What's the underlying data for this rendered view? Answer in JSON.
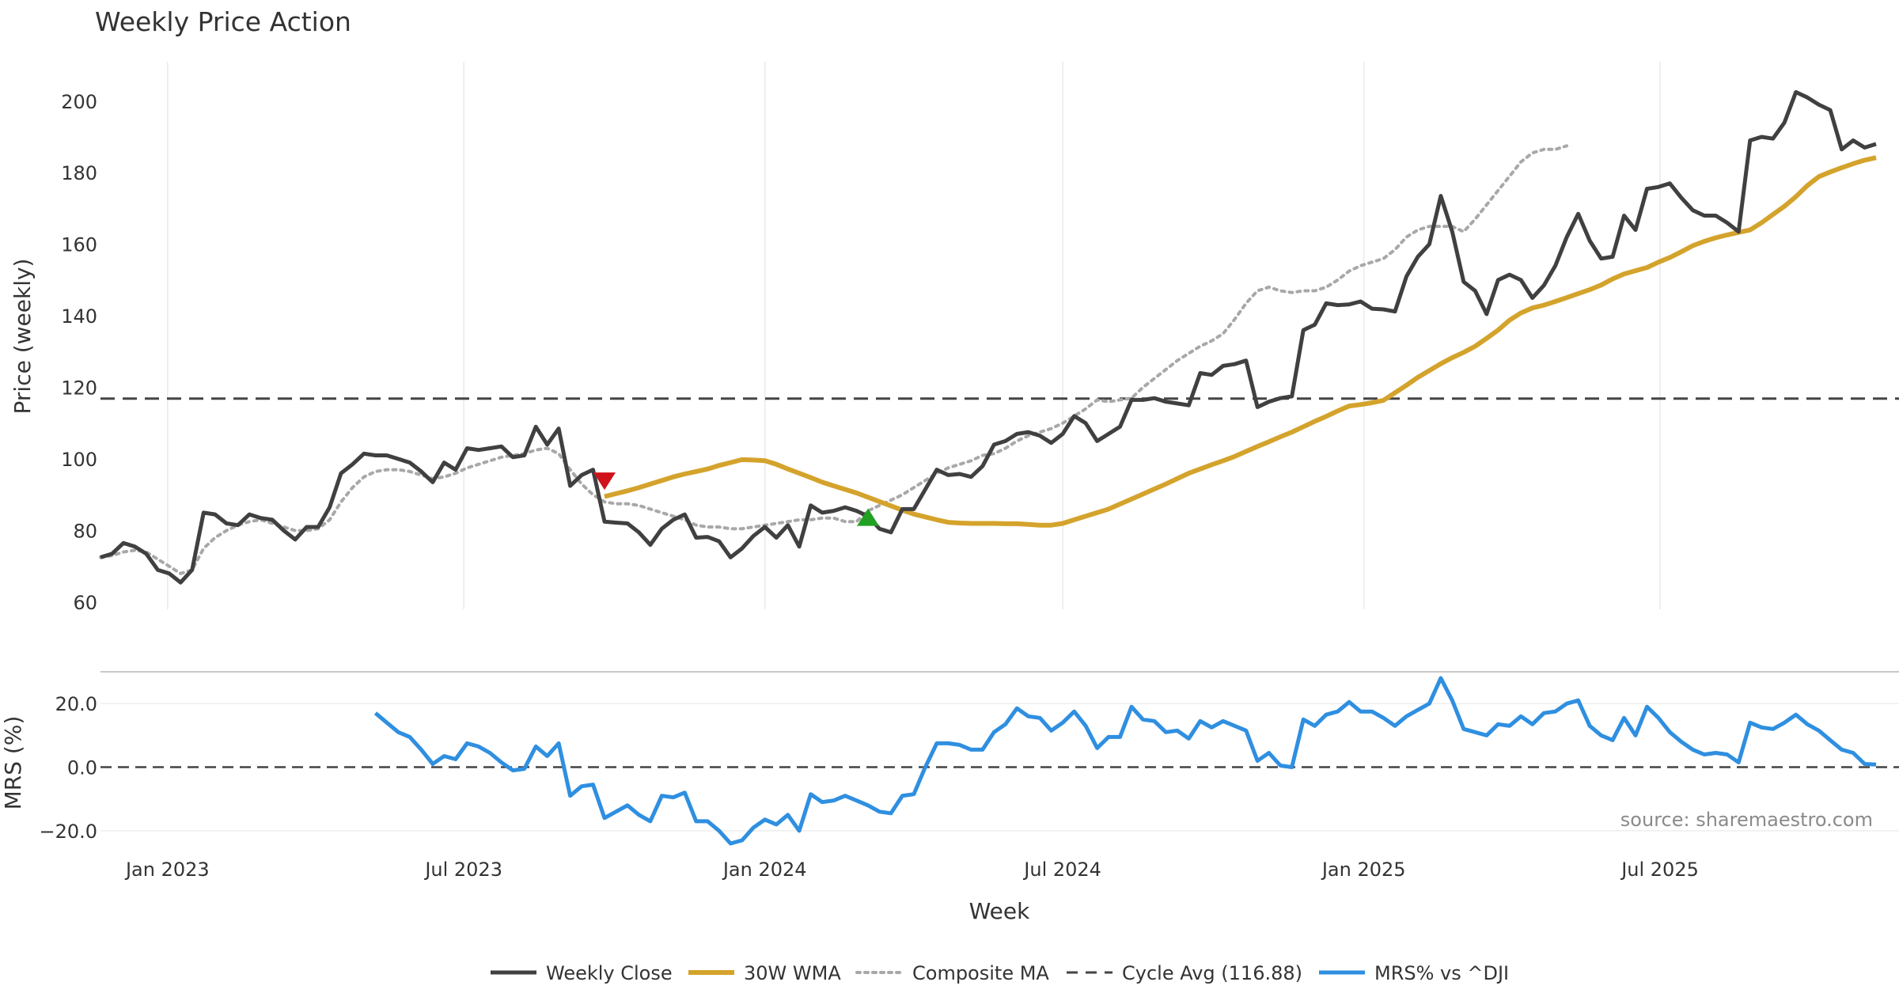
{
  "chart_data": {
    "type": "line",
    "title": "Weekly Price Action",
    "xlabel": "Week",
    "x_ticks": [
      "Jan 2023",
      "Jul 2023",
      "Jan 2024",
      "Jul 2024",
      "Jan 2025",
      "Jul 2025"
    ],
    "price_panel": {
      "ylabel": "Price (weekly)",
      "ylim": [
        58,
        211
      ],
      "y_ticks": [
        "60",
        "80",
        "100",
        "120",
        "140",
        "160",
        "180",
        "200"
      ],
      "grid": true
    },
    "mrs_panel": {
      "ylabel": "MRS (%)",
      "ylim": [
        -25,
        30
      ],
      "y_ticks": [
        "20.0",
        "0.0",
        "−20.0"
      ],
      "grid": true
    },
    "source": "source: sharemaestro.com",
    "colors": {
      "close": "#404040",
      "wma": "#d4a32c",
      "composite": "#a8a8a8",
      "cycle": "#444444",
      "mrs": "#2f8fe0",
      "sell_marker": "#d0121b",
      "buy_marker": "#22a022",
      "grid": "#e8eaf2"
    },
    "legend": [
      {
        "label": "Weekly Close",
        "style": "solid",
        "color": "#404040"
      },
      {
        "label": "30W WMA",
        "style": "solid-thick",
        "color": "#d4a32c"
      },
      {
        "label": "Composite MA",
        "style": "dotted",
        "color": "#a8a8a8"
      },
      {
        "label": "Cycle Avg (116.88)",
        "style": "dashed",
        "color": "#444444"
      },
      {
        "label": "MRS% vs ^DJI",
        "style": "solid",
        "color": "#2f8fe0"
      }
    ],
    "cycle_avg": 116.88,
    "weeks_start_date": "2022-11-21",
    "weekly_close": [
      72.5,
      73.5,
      76.5,
      75.5,
      73.5,
      69,
      68,
      65.5,
      69,
      85,
      84.5,
      82,
      81.5,
      84.5,
      83.5,
      83,
      80,
      77.5,
      81,
      81,
      86.5,
      96,
      98.5,
      101.5,
      101,
      101,
      100,
      99,
      96.5,
      93.5,
      99,
      97,
      103,
      102.5,
      103,
      103.5,
      100.5,
      101,
      109,
      104,
      108.5,
      92.5,
      95.5,
      97,
      82.5,
      82.2,
      82,
      79.5,
      76,
      80.5,
      83,
      84.5,
      78,
      78.2,
      77,
      72.5,
      75,
      78.5,
      81,
      78,
      81.5,
      75.5,
      87,
      85,
      85.5,
      86.5,
      85.5,
      84,
      80.5,
      79.5,
      86,
      86,
      91.5,
      97,
      95.5,
      95.8,
      95,
      98,
      104,
      105,
      107,
      107.5,
      106.5,
      104.5,
      107,
      112,
      110,
      105,
      107,
      109,
      116.5,
      116.5,
      117,
      116,
      115.5,
      115,
      124,
      123.5,
      126,
      126.5,
      127.5,
      114.5,
      116,
      117,
      117.5,
      136,
      137.5,
      143.5,
      143,
      143.2,
      144,
      142,
      141.8,
      141.2,
      151,
      156.5,
      160,
      173.5,
      163.5,
      149.5,
      147,
      140.5,
      150,
      151.5,
      150,
      145,
      148.5,
      154,
      162,
      168.5,
      161,
      156,
      156.5,
      168,
      164,
      175.5,
      176,
      177,
      173,
      169.5,
      168,
      168,
      166,
      163.5,
      189,
      190,
      189.5,
      194,
      202.5,
      201,
      199,
      197.5,
      186.5,
      189,
      187,
      188
    ],
    "wma_30": [
      89.5,
      90.3,
      91.1,
      92,
      93,
      94,
      95,
      95.8,
      96.5,
      97.2,
      98.2,
      99,
      99.8,
      99.7,
      99.5,
      98.5,
      97.2,
      96,
      94.8,
      93.5,
      92.5,
      91.5,
      90.5,
      89.3,
      88.1,
      86.9,
      85.7,
      84.6,
      83.8,
      83,
      82.3,
      82.1,
      82,
      82,
      82,
      81.9,
      81.9,
      81.7,
      81.5,
      81.5,
      82,
      83,
      84,
      85,
      86,
      87.4,
      88.8,
      90.2,
      91.6,
      93,
      94.5,
      96,
      97.2,
      98.4,
      99.5,
      100.7,
      102.1,
      103.5,
      104.8,
      106.2,
      107.5,
      109,
      110.5,
      111.9,
      113.4,
      114.8,
      115.2,
      115.7,
      116.4,
      118.5,
      120.6,
      122.8,
      124.7,
      126.6,
      128.3,
      129.8,
      131.5,
      133.7,
      136,
      138.8,
      140.8,
      142.2,
      143,
      144,
      145.1,
      146.2,
      147.3,
      148.6,
      150.3,
      151.7,
      152.6,
      153.5,
      155,
      156.3,
      157.9,
      159.6,
      160.8,
      161.8,
      162.6,
      163.3,
      164,
      166,
      168.3,
      170.6,
      173.3,
      176.4,
      178.9,
      180.2,
      181.4,
      182.5,
      183.5,
      184.2
    ],
    "composite_ma": [
      72.5,
      73,
      74,
      74.5,
      74,
      72,
      70,
      68,
      69,
      75,
      78,
      80,
      81.5,
      82.5,
      83,
      82,
      81,
      80,
      80,
      80.5,
      83,
      88,
      92,
      95,
      96.5,
      97,
      97,
      96.5,
      95.5,
      94.5,
      95,
      96,
      97.5,
      98.5,
      99.5,
      100.5,
      101,
      101.5,
      102.5,
      103,
      101.5,
      97,
      93,
      90,
      88,
      87.5,
      87.5,
      87,
      86,
      85,
      84,
      83,
      81.5,
      81,
      81,
      80.5,
      80.5,
      81,
      81.5,
      82,
      82.5,
      83,
      83,
      83.5,
      83.5,
      82.5,
      82.5,
      85.5,
      87,
      88.5,
      90,
      92,
      94,
      96,
      97.5,
      98.5,
      99.5,
      101,
      101.5,
      103,
      105,
      106.5,
      107.5,
      108.5,
      110,
      112,
      114,
      116.5,
      116,
      116.5,
      117,
      120,
      122.5,
      125,
      127.5,
      129.5,
      131.5,
      133,
      135,
      139,
      143.5,
      147,
      148,
      147,
      146.5,
      147,
      147,
      148,
      150,
      152.5,
      154,
      155,
      156,
      158.5,
      162,
      164,
      165,
      165,
      165,
      163.5,
      167,
      171,
      175,
      179,
      183,
      185.5,
      186.5,
      186.5,
      187.5
    ],
    "mrs_pct": [
      17,
      14,
      11,
      9.5,
      5.5,
      1,
      3.5,
      2.5,
      7.5,
      6.5,
      4.5,
      1.5,
      -1,
      -0.5,
      6.5,
      3.5,
      7.5,
      -9,
      -6,
      -5.5,
      -16,
      -14,
      -12,
      -15,
      -17,
      -9,
      -9.5,
      -8,
      -17,
      -17,
      -20,
      -24,
      -23,
      -19,
      -16.5,
      -18,
      -15,
      -20,
      -8.5,
      -11,
      -10.5,
      -9,
      -10.5,
      -12,
      -14,
      -14.5,
      -9,
      -8.5,
      0,
      7.5,
      7.5,
      7,
      5.5,
      5.5,
      11,
      13.5,
      18.5,
      16,
      15.5,
      11.5,
      14,
      17.5,
      13,
      6,
      9.5,
      9.5,
      19,
      15,
      14.5,
      11,
      11.5,
      9,
      14.5,
      12.5,
      14.5,
      13,
      11.5,
      2,
      4.5,
      0.5,
      0,
      15,
      13,
      16.5,
      17.5,
      20.5,
      17.5,
      17.5,
      15.5,
      13,
      16,
      18,
      20,
      28,
      21,
      12,
      11,
      10,
      13.5,
      13,
      16,
      13.5,
      17,
      17.5,
      20,
      21,
      13,
      10,
      8.5,
      15.5,
      10,
      19,
      15.5,
      11,
      8,
      5.5,
      4,
      4.5,
      4,
      1.5,
      14,
      12.5,
      12,
      14,
      16.5,
      13.5,
      11.5,
      8.5,
      5.5,
      4.5,
      1,
      0.8
    ],
    "markers": [
      {
        "type": "sell",
        "date": "2023-09-25",
        "value": 94
      },
      {
        "type": "buy",
        "date": "2024-03-04",
        "value": 83.5
      }
    ]
  }
}
